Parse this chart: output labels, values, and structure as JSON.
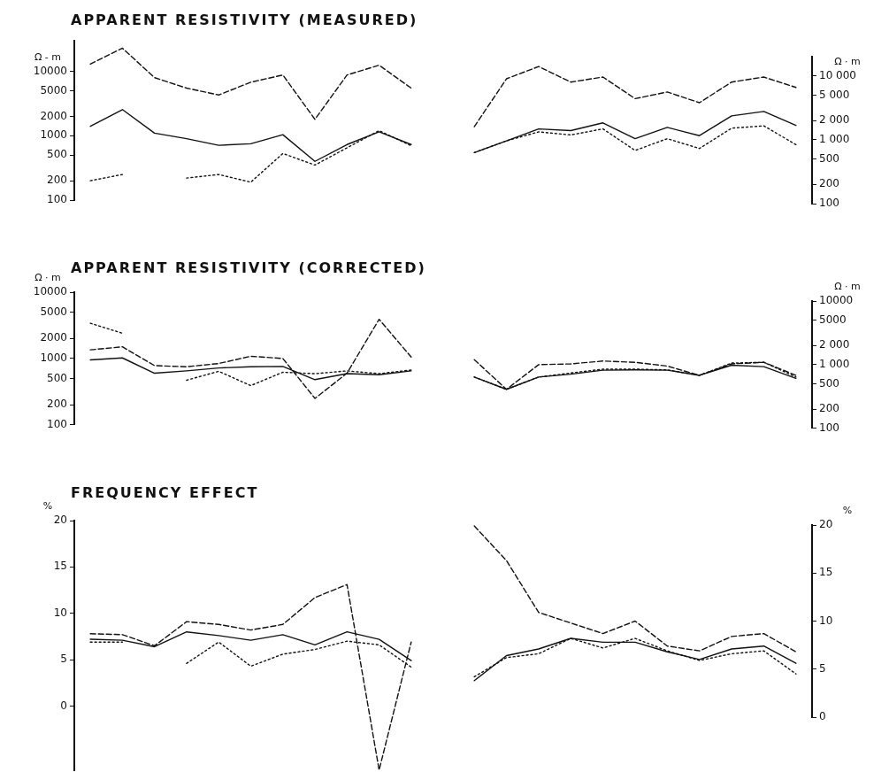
{
  "chart_data": [
    {
      "type": "line",
      "title": "APPARENT RESISTIVITY (MEASURED)",
      "ylabel": "Ω - m",
      "log": true,
      "tick_labels": "y",
      "grid": false,
      "legend": false,
      "categories": [
        null,
        null,
        null,
        null,
        null,
        null,
        null,
        null,
        null,
        null,
        null
      ],
      "ylim": [
        100,
        30000
      ],
      "yticks": [
        100,
        200,
        500,
        1000,
        2000,
        5000,
        10000
      ],
      "series": [
        {
          "color": "#111111",
          "line_style": "dashed",
          "values": [
            13000,
            23000,
            8000,
            5500,
            4300,
            6800,
            8800,
            1800,
            8800,
            12500,
            5500
          ]
        },
        {
          "color": "#111111",
          "line_style": "solid",
          "values": [
            1400,
            2550,
            1100,
            900,
            710,
            750,
            1040,
            400,
            730,
            1150,
            730
          ]
        },
        {
          "color": "#111111",
          "line_style": "dotted",
          "values": [
            200,
            250,
            null,
            220,
            250,
            190,
            530,
            350,
            650,
            1200,
            700
          ]
        }
      ]
    },
    {
      "type": "line",
      "ylabel": "Ω · m",
      "log": true,
      "tick_labels": "y",
      "grid": false,
      "legend": false,
      "categories": [
        null,
        null,
        null,
        null,
        null,
        null,
        null,
        null,
        null,
        null,
        null
      ],
      "ylim": [
        100,
        20000
      ],
      "yticks": [
        100,
        200,
        500,
        {
          "value": 1000,
          "label": "1 000"
        },
        {
          "value": 2000,
          "label": "2 000"
        },
        {
          "value": 5000,
          "label": "5 000"
        },
        {
          "value": 10000,
          "label": "10 000"
        }
      ],
      "series": [
        {
          "color": "#111111",
          "line_style": "dashed",
          "values": [
            1600,
            9000,
            14000,
            8000,
            9600,
            4400,
            5600,
            3800,
            8000,
            9600,
            6600
          ]
        },
        {
          "color": "#111111",
          "line_style": "solid",
          "values": [
            630,
            960,
            1480,
            1390,
            1840,
            1040,
            1560,
            1160,
            2370,
            2780,
            1680
          ]
        },
        {
          "color": "#111111",
          "line_style": "dotted",
          "values": [
            630,
            960,
            1330,
            1190,
            1480,
            680,
            1040,
            730,
            1520,
            1650,
            840
          ]
        }
      ]
    },
    {
      "type": "line",
      "title": "APPARENT RESISTIVITY (CORRECTED)",
      "ylabel": "Ω · m",
      "log": true,
      "tick_labels": "y",
      "grid": false,
      "legend": false,
      "categories": [
        null,
        null,
        null,
        null,
        null,
        null,
        null,
        null,
        null,
        null,
        null
      ],
      "ylim": [
        100,
        10000
      ],
      "yticks": [
        100,
        200,
        500,
        1000,
        2000,
        5000,
        10000
      ],
      "series": [
        {
          "color": "#111111",
          "line_style": "dashed",
          "values": [
            1350,
            1500,
            780,
            750,
            840,
            1080,
            1000,
            250,
            600,
            3900,
            1050
          ]
        },
        {
          "color": "#111111",
          "line_style": "solid",
          "values": [
            950,
            1020,
            600,
            650,
            720,
            750,
            760,
            480,
            590,
            570,
            650
          ]
        },
        {
          "color": "#111111",
          "line_style": "dotted",
          "values": [
            3400,
            2400,
            null,
            470,
            640,
            390,
            620,
            590,
            650,
            590,
            670
          ]
        }
      ]
    },
    {
      "type": "line",
      "ylabel": "Ω · m",
      "log": true,
      "tick_labels": "y",
      "grid": false,
      "legend": false,
      "categories": [
        null,
        null,
        null,
        null,
        null,
        null,
        null,
        null,
        null,
        null,
        null
      ],
      "ylim": [
        100,
        10000
      ],
      "yticks": [
        100,
        200,
        500,
        {
          "value": 1000,
          "label": "1 000"
        },
        {
          "value": 2000,
          "label": "2 000"
        },
        5000,
        10000
      ],
      "series": [
        {
          "color": "#111111",
          "line_style": "dashed",
          "values": [
            1200,
            410,
            1000,
            1030,
            1140,
            1090,
            950,
            680,
            1030,
            1090,
            680
          ]
        },
        {
          "color": "#111111",
          "line_style": "solid",
          "values": [
            640,
            410,
            640,
            710,
            820,
            830,
            820,
            680,
            980,
            930,
            610
          ]
        },
        {
          "color": "#111111",
          "line_style": "dotted",
          "values": [
            640,
            410,
            640,
            740,
            850,
            850,
            830,
            680,
            1060,
            1090,
            640
          ]
        }
      ]
    },
    {
      "type": "line",
      "title": "FREQUENCY EFFECT",
      "ylabel": "%",
      "tick_labels": "y",
      "grid": false,
      "legend": false,
      "categories": [
        null,
        null,
        null,
        null,
        null,
        null,
        null,
        null,
        null,
        null,
        null
      ],
      "ylim": [
        -7,
        20
      ],
      "yticks": [
        0,
        5,
        10,
        15,
        20
      ],
      "series": [
        {
          "color": "#111111",
          "line_style": "dashed",
          "values": [
            7.8,
            7.7,
            6.5,
            9.1,
            8.8,
            8.2,
            8.8,
            11.7,
            13.1,
            -6.9,
            6.9
          ]
        },
        {
          "color": "#111111",
          "line_style": "solid",
          "values": [
            7.2,
            7.1,
            6.4,
            8.0,
            7.6,
            7.1,
            7.7,
            6.6,
            8.0,
            7.2,
            4.9
          ]
        },
        {
          "color": "#111111",
          "line_style": "dotted",
          "values": [
            6.9,
            6.9,
            null,
            4.6,
            6.9,
            4.3,
            5.6,
            6.1,
            7.0,
            6.6,
            4.2
          ]
        }
      ]
    },
    {
      "type": "line",
      "ylabel": "%",
      "tick_labels": "y",
      "grid": false,
      "legend": false,
      "categories": [
        null,
        null,
        null,
        null,
        null,
        null,
        null,
        null,
        null,
        null,
        null
      ],
      "ylim": [
        0,
        20
      ],
      "yticks": [
        0,
        5,
        10,
        15,
        20
      ],
      "series": [
        {
          "color": "#111111",
          "line_style": "dashed",
          "values": [
            19.9,
            16.3,
            10.9,
            9.8,
            8.7,
            10.0,
            7.4,
            6.9,
            8.4,
            8.7,
            6.8
          ]
        },
        {
          "color": "#111111",
          "line_style": "solid",
          "values": [
            3.8,
            6.4,
            7.1,
            8.2,
            7.8,
            7.8,
            6.8,
            6.0,
            7.1,
            7.4,
            5.6
          ]
        },
        {
          "color": "#111111",
          "line_style": "dotted",
          "values": [
            4.2,
            6.2,
            6.6,
            8.2,
            7.2,
            8.2,
            6.9,
            5.9,
            6.6,
            6.9,
            4.5
          ]
        }
      ]
    }
  ]
}
